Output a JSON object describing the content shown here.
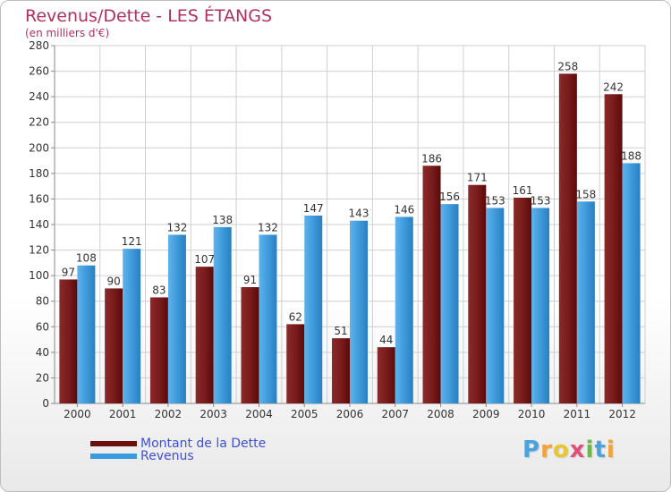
{
  "title": "Revenus/Dette - LES ÉTANGS",
  "subtitle": "(en milliers d'€)",
  "colors": {
    "dette": "#7a1c1c",
    "revenus": "#3a95d6",
    "title": "#b03060",
    "legend_text": "#3f4fd9"
  },
  "legend": [
    {
      "label": "Montant de la Dette",
      "color": "#6b0f0f"
    },
    {
      "label": "Revenus",
      "color": "#3a9ae0"
    }
  ],
  "logo": {
    "letters": [
      {
        "ch": "P",
        "color": "#4aa3df"
      },
      {
        "ch": "r",
        "color": "#f2a33a"
      },
      {
        "ch": "o",
        "color": "#e8c730"
      },
      {
        "ch": "x",
        "color": "#e0507a"
      },
      {
        "ch": "i",
        "color": "#68b84a"
      },
      {
        "ch": "t",
        "color": "#4aa3df"
      },
      {
        "ch": "i",
        "color": "#f2a33a"
      }
    ]
  },
  "chart_data": {
    "type": "bar",
    "title": "Revenus/Dette - LES ÉTANGS",
    "subtitle": "(en milliers d'€)",
    "categories": [
      "2000",
      "2001",
      "2002",
      "2003",
      "2004",
      "2005",
      "2006",
      "2007",
      "2008",
      "2009",
      "2010",
      "2011",
      "2012"
    ],
    "series": [
      {
        "name": "Montant de la Dette",
        "values": [
          97,
          90,
          83,
          107,
          91,
          62,
          51,
          44,
          186,
          171,
          161,
          258,
          242
        ]
      },
      {
        "name": "Revenus",
        "values": [
          108,
          121,
          132,
          138,
          132,
          147,
          143,
          146,
          156,
          153,
          153,
          158,
          188
        ]
      }
    ],
    "ylim": [
      0,
      280
    ],
    "yticks": [
      0,
      20,
      40,
      60,
      80,
      100,
      120,
      140,
      160,
      180,
      200,
      220,
      240,
      260,
      280
    ],
    "grid": true,
    "legend_position": "bottom-left"
  }
}
